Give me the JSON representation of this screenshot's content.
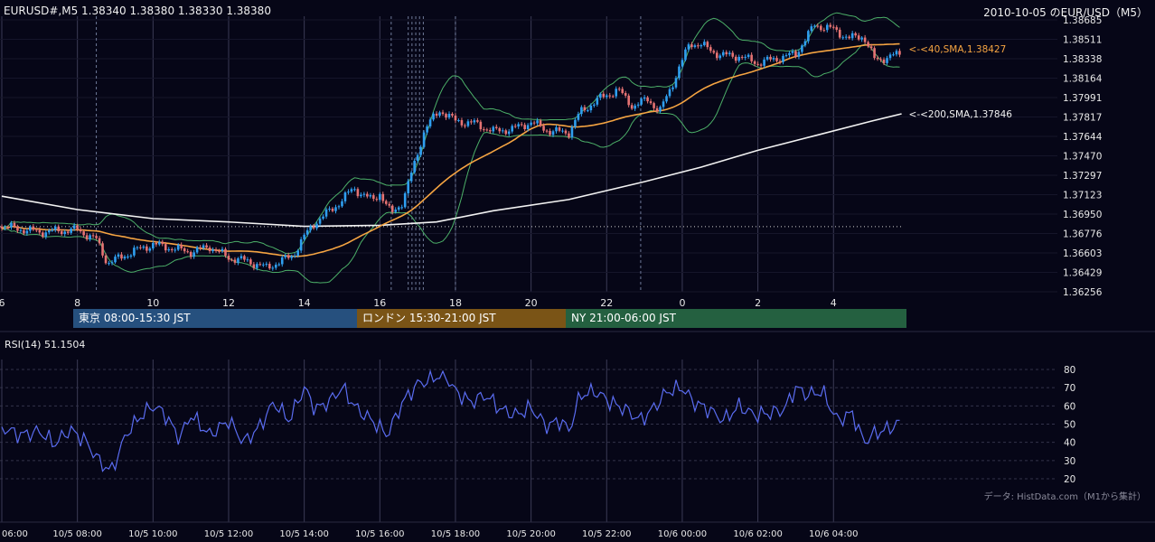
{
  "header": {
    "ohlc_label": "EURUSD#,M5 1.38340 1.38380 1.38330 1.38380",
    "chart_title": "2010-10-05 のEUR/USD（M5）"
  },
  "sessions": [
    {
      "label": "東京 08:00-15:30 JST",
      "color": "#26507e"
    },
    {
      "label": "ロンドン 15:30-21:00 JST",
      "color": "#7a5416"
    },
    {
      "label": "NY 21:00-06:00 JST",
      "color": "#246040"
    }
  ],
  "rsi_label": "RSI(14) 51.1504",
  "source_note": "データ: HistData.com（M1から集計）",
  "colors": {
    "background": "#060617",
    "grid": "#3b3b55",
    "candle_up": "#2f9ff0",
    "candle_down": "#e57373",
    "sma40": "#f5a442",
    "sma200": "#f2f2f2",
    "bollinger": "#4caf68",
    "rsi": "#5a6cf0"
  },
  "chart_data": [
    {
      "type": "candlestick",
      "title": "2010-10-05 のEUR/USD（M5）",
      "x_ticks": [
        "6",
        "8",
        "10",
        "12",
        "14",
        "16",
        "18",
        "20",
        "22",
        "0",
        "2",
        "4"
      ],
      "y_ticks": [
        "1.36256",
        "1.36429",
        "1.36603",
        "1.36776",
        "1.36950",
        "1.37123",
        "1.37297",
        "1.37470",
        "1.37644",
        "1.37817",
        "1.37991",
        "1.38164",
        "1.38338",
        "1.38511",
        "1.38685"
      ],
      "ylim": [
        1.36256,
        1.38685
      ],
      "xlim_hours": [
        6.0,
        30.0
      ],
      "last_price": 1.3838,
      "reference_price": 1.36838,
      "indicators": [
        {
          "name": "SMA 40",
          "label": "<-<40,SMA,1.38427",
          "value": 1.38427
        },
        {
          "name": "SMA 200",
          "label": "<-<200,SMA,1.37846",
          "value": 1.37846
        },
        {
          "name": "Bollinger Bands"
        }
      ],
      "anchors_hour_price": [
        [
          6.0,
          1.3684
        ],
        [
          7.0,
          1.3679
        ],
        [
          8.0,
          1.3681
        ],
        [
          8.5,
          1.3672
        ],
        [
          8.8,
          1.3651
        ],
        [
          9.5,
          1.3662
        ],
        [
          10.0,
          1.3668
        ],
        [
          11.0,
          1.3661
        ],
        [
          11.5,
          1.3666
        ],
        [
          12.0,
          1.3656
        ],
        [
          12.5,
          1.3653
        ],
        [
          13.0,
          1.3647
        ],
        [
          13.7,
          1.3658
        ],
        [
          14.0,
          1.3675
        ],
        [
          14.3,
          1.3688
        ],
        [
          14.8,
          1.3701
        ],
        [
          15.3,
          1.3718
        ],
        [
          15.8,
          1.3707
        ],
        [
          16.0,
          1.3714
        ],
        [
          16.3,
          1.3695
        ],
        [
          16.6,
          1.3706
        ],
        [
          16.9,
          1.3738
        ],
        [
          17.2,
          1.3772
        ],
        [
          17.6,
          1.3788
        ],
        [
          18.0,
          1.3778
        ],
        [
          18.5,
          1.3776
        ],
        [
          19.0,
          1.3769
        ],
        [
          19.5,
          1.3771
        ],
        [
          20.0,
          1.3777
        ],
        [
          20.5,
          1.3769
        ],
        [
          21.0,
          1.3768
        ],
        [
          21.3,
          1.3786
        ],
        [
          21.8,
          1.3798
        ],
        [
          22.3,
          1.3806
        ],
        [
          22.7,
          1.3791
        ],
        [
          23.1,
          1.3798
        ],
        [
          23.4,
          1.3786
        ],
        [
          23.8,
          1.3816
        ],
        [
          24.2,
          1.3848
        ],
        [
          24.5,
          1.3846
        ],
        [
          25.0,
          1.3837
        ],
        [
          25.5,
          1.3836
        ],
        [
          26.0,
          1.383
        ],
        [
          26.5,
          1.3834
        ],
        [
          27.0,
          1.3838
        ],
        [
          27.5,
          1.3864
        ],
        [
          28.0,
          1.386
        ],
        [
          28.4,
          1.3852
        ],
        [
          28.8,
          1.3854
        ],
        [
          29.1,
          1.3832
        ],
        [
          29.5,
          1.3836
        ],
        [
          29.8,
          1.3838
        ]
      ]
    },
    {
      "type": "line",
      "title": "RSI(14)",
      "value": 51.1504,
      "y_ticks": [
        "20",
        "30",
        "40",
        "50",
        "60",
        "70",
        "80"
      ],
      "ylim": [
        20,
        80
      ],
      "anchors_hour_value": [
        [
          6.0,
          48
        ],
        [
          6.5,
          44
        ],
        [
          7.0,
          46
        ],
        [
          7.4,
          39
        ],
        [
          7.8,
          47
        ],
        [
          8.2,
          41
        ],
        [
          8.6,
          29
        ],
        [
          8.9,
          24
        ],
        [
          9.3,
          45
        ],
        [
          9.7,
          55
        ],
        [
          10.0,
          60
        ],
        [
          10.3,
          56
        ],
        [
          10.7,
          42
        ],
        [
          11.0,
          55
        ],
        [
          11.5,
          44
        ],
        [
          12.0,
          52
        ],
        [
          12.4,
          40
        ],
        [
          12.8,
          48
        ],
        [
          13.2,
          62
        ],
        [
          13.6,
          52
        ],
        [
          14.0,
          70
        ],
        [
          14.3,
          58
        ],
        [
          14.7,
          63
        ],
        [
          15.0,
          70
        ],
        [
          15.4,
          58
        ],
        [
          15.8,
          52
        ],
        [
          16.2,
          44
        ],
        [
          16.6,
          62
        ],
        [
          17.0,
          72
        ],
        [
          17.3,
          74
        ],
        [
          17.7,
          78
        ],
        [
          18.0,
          68
        ],
        [
          18.4,
          62
        ],
        [
          18.8,
          66
        ],
        [
          19.2,
          58
        ],
        [
          19.6,
          55
        ],
        [
          20.0,
          59
        ],
        [
          20.4,
          49
        ],
        [
          20.8,
          52
        ],
        [
          21.0,
          46
        ],
        [
          21.3,
          66
        ],
        [
          21.7,
          68
        ],
        [
          22.1,
          62
        ],
        [
          22.5,
          58
        ],
        [
          22.9,
          52
        ],
        [
          23.3,
          60
        ],
        [
          23.6,
          68
        ],
        [
          24.0,
          70
        ],
        [
          24.3,
          62
        ],
        [
          24.7,
          58
        ],
        [
          25.1,
          52
        ],
        [
          25.5,
          60
        ],
        [
          25.9,
          55
        ],
        [
          26.3,
          56
        ],
        [
          26.7,
          58
        ],
        [
          27.0,
          70
        ],
        [
          27.3,
          66
        ],
        [
          27.7,
          68
        ],
        [
          28.1,
          52
        ],
        [
          28.5,
          56
        ],
        [
          28.8,
          40
        ],
        [
          29.1,
          45
        ],
        [
          29.4,
          47
        ],
        [
          29.8,
          51.15
        ]
      ]
    }
  ],
  "bottom_axis_ticks": [
    "06:00",
    "10/5 08:00",
    "10/5 10:00",
    "10/5 12:00",
    "10/5 14:00",
    "10/5 16:00",
    "10/5 18:00",
    "10/5 20:00",
    "10/5 22:00",
    "10/6 00:00",
    "10/6 02:00",
    "10/6 04:00"
  ]
}
